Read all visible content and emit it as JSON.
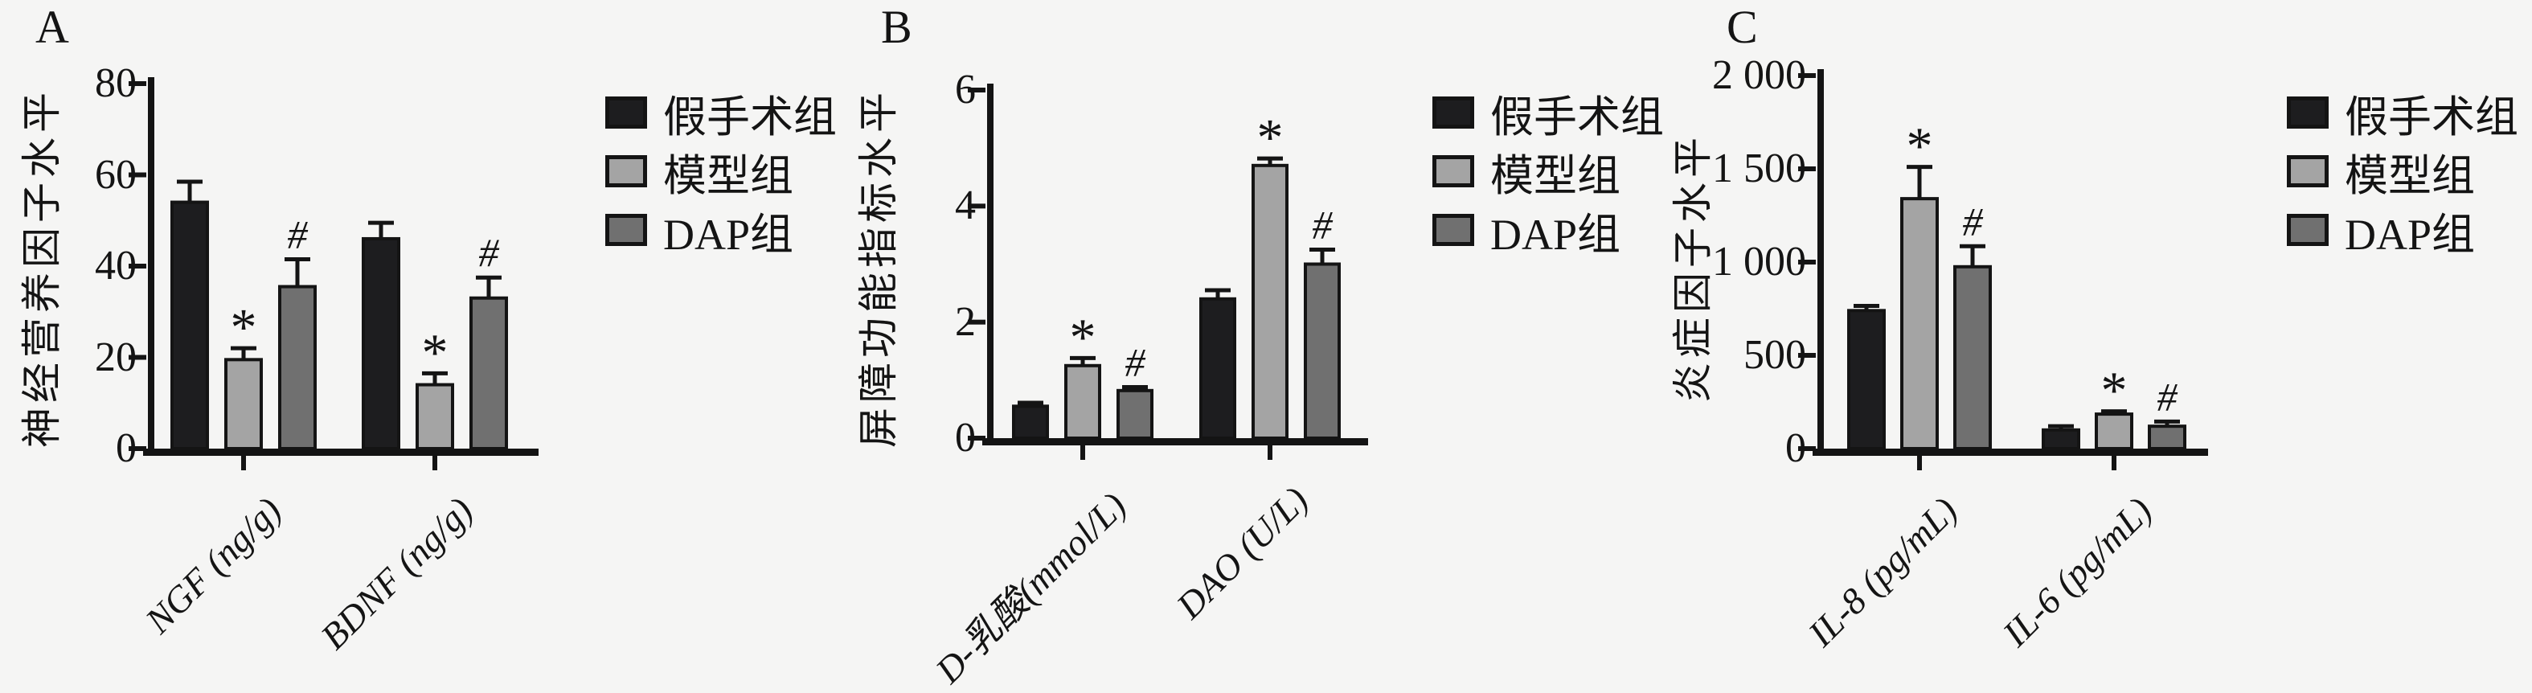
{
  "legend": {
    "entries": [
      "假手术组",
      "模型组",
      "DAP组"
    ]
  },
  "series_colors": {
    "假手术组": "#1d1d1f",
    "模型组": "#a4a4a4",
    "DAP组": "#707070"
  },
  "axis_color": "#141414",
  "background_color": "#f5f5f4",
  "significance_symbols": [
    "*",
    "#"
  ],
  "chart_data": [
    {
      "type": "bar",
      "panel_label": "A",
      "title": "",
      "xlabel": "",
      "ylabel": "神经营养因子水平",
      "categories": [
        "NGF (ng/g)",
        "BDNF (ng/g)"
      ],
      "series": [
        {
          "name": "假手术组",
          "values": [
            54,
            46
          ],
          "errors": [
            4.5,
            3.5
          ],
          "sig": [
            "",
            ""
          ]
        },
        {
          "name": "模型组",
          "values": [
            19.5,
            14
          ],
          "errors": [
            2.5,
            2.5
          ],
          "sig": [
            "*",
            "*"
          ]
        },
        {
          "name": "DAP组",
          "values": [
            35.5,
            33
          ],
          "errors": [
            6,
            4.5
          ],
          "sig": [
            "#",
            "#"
          ]
        }
      ],
      "ylim": [
        0,
        80
      ],
      "yticks": [
        0,
        20,
        40,
        60,
        80
      ],
      "ytick_labels": [
        "0",
        "20",
        "40",
        "60",
        "80"
      ],
      "grid": false,
      "legend_position": "right"
    },
    {
      "type": "bar",
      "panel_label": "B",
      "title": "",
      "xlabel": "",
      "ylabel": "屏障功能指标水平",
      "categories": [
        "D-乳酸(mmol/L)",
        "DAO (U/L)"
      ],
      "series": [
        {
          "name": "假手术组",
          "values": [
            0.55,
            2.4
          ],
          "errors": [
            0.06,
            0.15
          ],
          "sig": [
            "",
            ""
          ]
        },
        {
          "name": "模型组",
          "values": [
            1.25,
            4.7
          ],
          "errors": [
            0.13,
            0.12
          ],
          "sig": [
            "*",
            "*"
          ]
        },
        {
          "name": "DAP组",
          "values": [
            0.82,
            3.0
          ],
          "errors": [
            0.06,
            0.25
          ],
          "sig": [
            "#",
            "#"
          ]
        }
      ],
      "ylim": [
        0,
        6
      ],
      "yticks": [
        0,
        2,
        4,
        6
      ],
      "ytick_labels": [
        "0",
        "2",
        "4",
        "6"
      ],
      "grid": false,
      "legend_position": "right"
    },
    {
      "type": "bar",
      "panel_label": "C",
      "title": "",
      "xlabel": "",
      "ylabel": "炎症因子水平",
      "categories": [
        "IL-8 (pg/mL)",
        "IL-6 (pg/mL)"
      ],
      "series": [
        {
          "name": "假手术组",
          "values": [
            740,
            100
          ],
          "errors": [
            25,
            20
          ],
          "sig": [
            "",
            ""
          ]
        },
        {
          "name": "模型组",
          "values": [
            1340,
            185
          ],
          "errors": [
            170,
            15
          ],
          "sig": [
            "*",
            "*"
          ]
        },
        {
          "name": "DAP组",
          "values": [
            975,
            120
          ],
          "errors": [
            110,
            25
          ],
          "sig": [
            "#",
            "#"
          ]
        }
      ],
      "ylim": [
        0,
        2000
      ],
      "yticks": [
        0,
        500,
        1000,
        1500,
        2000
      ],
      "ytick_labels": [
        "0",
        "500",
        "1 000",
        "1 500",
        "2 000"
      ],
      "grid": false,
      "legend_position": "right"
    }
  ]
}
